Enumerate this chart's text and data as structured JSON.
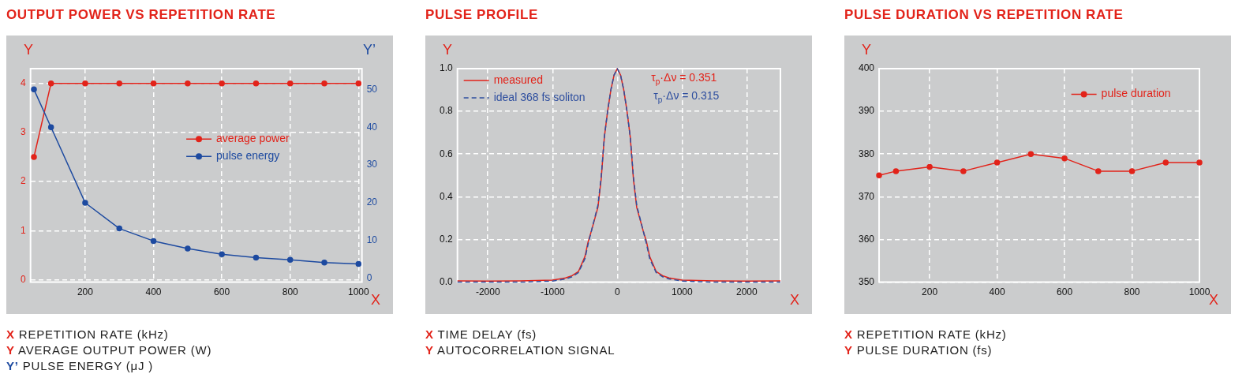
{
  "chart_data": [
    {
      "type": "line",
      "title": "OUTPUT POWER VS REPETITION RATE",
      "xlabel": "X",
      "ylabel": "Y",
      "y2label": "Y’",
      "x": [
        50,
        100,
        200,
        300,
        400,
        500,
        600,
        700,
        800,
        900,
        1000
      ],
      "series": [
        {
          "name": "average power",
          "color": "#e2231a",
          "values": [
            2.5,
            4,
            4,
            4,
            4,
            4,
            4,
            4,
            4,
            4,
            4
          ]
        },
        {
          "name": "pulse energy",
          "color": "#1d4aa0",
          "axis": "y2",
          "values": [
            50,
            40,
            20,
            13.2,
            9.9,
            7.9,
            6.4,
            5.5,
            4.9,
            4.2,
            3.8
          ]
        }
      ],
      "xlim": [
        40,
        1010
      ],
      "xticks": [
        200,
        400,
        600,
        800,
        1000
      ],
      "ylim": [
        -0.05,
        4.3
      ],
      "yticks": [
        0,
        1,
        2,
        3,
        4
      ],
      "y2lim": [
        -1,
        55.5
      ],
      "y2ticks": [
        0,
        10,
        20,
        30,
        40,
        50
      ],
      "grid": true,
      "legend": "right",
      "marker": "circle",
      "annotations": [
        "X REPETITION RATE (kHz)",
        "Y AVERAGE OUTPUT POWER (W)",
        "Y’ PULSE ENERGY (μJ )"
      ]
    },
    {
      "type": "line",
      "title": "PULSE PROFILE",
      "xlabel": "X",
      "ylabel": "Y",
      "x": [
        -2470,
        -2000,
        -1500,
        -1000,
        -800,
        -700,
        -600,
        -500,
        -450,
        -400,
        -300,
        -250,
        -200,
        -150,
        -100,
        -50,
        0,
        50,
        100,
        150,
        200,
        250,
        300,
        400,
        450,
        500,
        600,
        700,
        800,
        1000,
        1500,
        2000,
        2520
      ],
      "series": [
        {
          "name": "measured",
          "color": "#e2231a",
          "line_style": "solid",
          "values": [
            0.006,
            0.005,
            0.006,
            0.01,
            0.02,
            0.03,
            0.05,
            0.12,
            0.19,
            0.24,
            0.35,
            0.48,
            0.68,
            0.8,
            0.9,
            0.97,
            1,
            0.97,
            0.9,
            0.8,
            0.68,
            0.48,
            0.35,
            0.24,
            0.19,
            0.12,
            0.05,
            0.03,
            0.02,
            0.01,
            0.006,
            0.005,
            0.006
          ]
        },
        {
          "name": "ideal 368 fs soliton",
          "color": "#2f4f9f",
          "line_style": "dashed",
          "values": [
            0,
            0,
            0,
            0.005,
            0.015,
            0.025,
            0.045,
            0.11,
            0.18,
            0.24,
            0.36,
            0.49,
            0.68,
            0.8,
            0.9,
            0.97,
            1,
            0.97,
            0.9,
            0.8,
            0.68,
            0.49,
            0.36,
            0.24,
            0.18,
            0.11,
            0.045,
            0.025,
            0.015,
            0.005,
            0,
            0,
            0
          ]
        }
      ],
      "xlim": [
        -2470,
        2520
      ],
      "xticks": [
        -2000,
        -1000,
        0,
        1000,
        2000
      ],
      "ylim": [
        0,
        1
      ],
      "yticks": [
        {
          "value": 0,
          "label": "0.0"
        },
        0.2,
        0.4,
        0.6,
        0.8,
        {
          "value": 1,
          "label": "1.0"
        }
      ],
      "grid": true,
      "legend": "top left",
      "marker": "none",
      "annotations": [
        "τ$_{p}$·Δν = 0.351",
        "τ$_{p}$·Δν = 0.315",
        "X TIME DELAY (fs)",
        "Y AUTOCORRELATION SIGNAL"
      ]
    },
    {
      "type": "line",
      "title": "PULSE DURATION VS REPETITION RATE",
      "xlabel": "X",
      "ylabel": "Y",
      "x": [
        50,
        100,
        200,
        300,
        400,
        500,
        600,
        700,
        800,
        900,
        1000
      ],
      "series": [
        {
          "name": "pulse duration",
          "color": "#e2231a",
          "values": [
            375,
            376,
            377,
            376,
            378,
            380,
            379,
            376,
            376,
            378,
            378
          ]
        }
      ],
      "xlim": [
        50,
        1000
      ],
      "xticks": [
        200,
        400,
        600,
        800,
        1000
      ],
      "ylim": [
        350,
        400
      ],
      "yticks": [
        350,
        360,
        370,
        380,
        390,
        400
      ],
      "grid": true,
      "legend": "top right",
      "marker": "circle",
      "annotations": [
        "X REPETITION RATE (kHz)",
        "Y PULSE DURATION (fs)"
      ]
    }
  ]
}
